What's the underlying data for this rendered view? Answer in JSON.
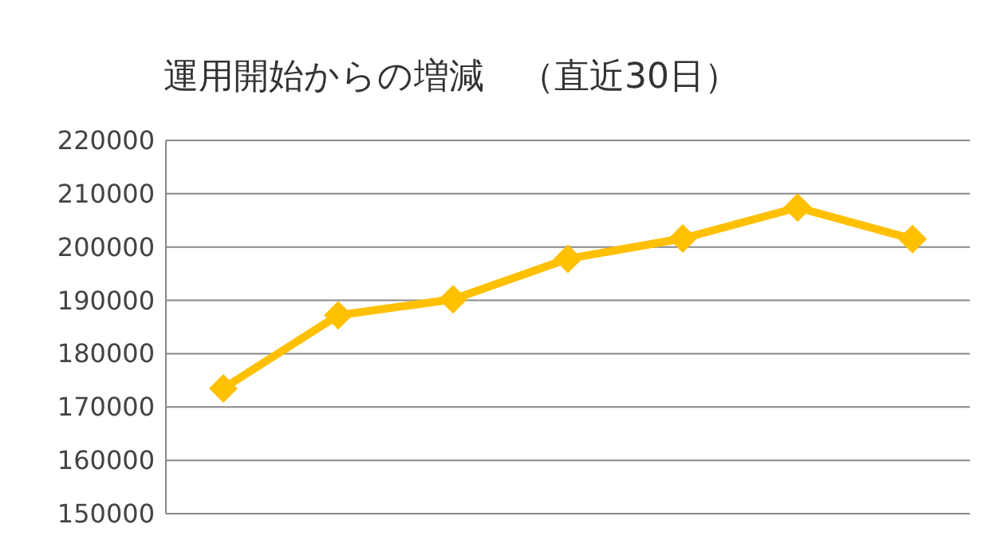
{
  "chart_data": {
    "type": "line",
    "title": "運用開始からの増減　（直近30日）",
    "categories": [
      null,
      null,
      null,
      null,
      null,
      null,
      null
    ],
    "series": [
      {
        "color": "#ffc000",
        "values": [
          173500,
          187200,
          190200,
          197800,
          201600,
          207400,
          201500
        ]
      }
    ],
    "ylim": [
      150000,
      220000
    ],
    "yticks": [
      150000,
      160000,
      170000,
      180000,
      190000,
      200000,
      210000,
      220000
    ],
    "grid": "y",
    "tick_labels": "y",
    "marker": "diamond",
    "line_style": "solid"
  }
}
